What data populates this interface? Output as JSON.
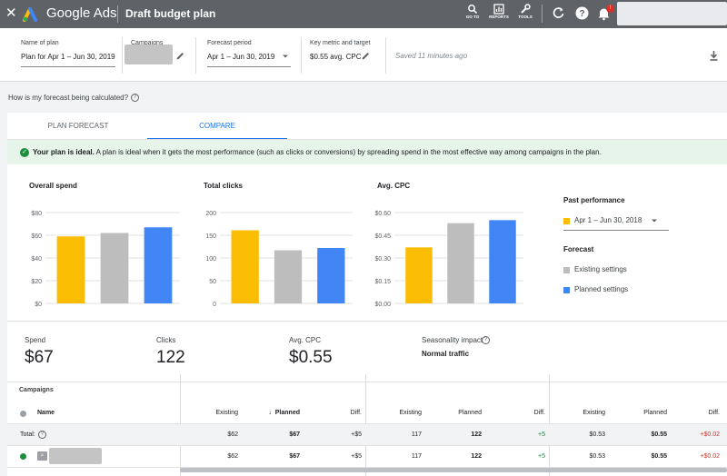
{
  "app": {
    "brand": "Google Ads",
    "page_title": "Draft budget plan",
    "tools": [
      {
        "label": "GO TO",
        "icon": "search-icon"
      },
      {
        "label": "REPORTS",
        "icon": "reports-icon"
      },
      {
        "label": "TOOLS",
        "icon": "wrench-icon"
      }
    ],
    "notification_count": "!"
  },
  "header": {
    "plan_name_label": "Name of plan",
    "plan_name_value": "Plan for Apr 1 – Jun 30, 2019",
    "campaigns_label": "Campaigns",
    "forecast_period_label": "Forecast period",
    "forecast_period_value": "Apr 1 – Jun 30, 2019",
    "metric_label": "Key metric and target",
    "metric_value": "$0.55 avg. CPC",
    "saved_text": "Saved 11 minutes ago"
  },
  "how_text": "How is my forecast being calculated?",
  "tabs": [
    {
      "label": "PLAN FORECAST",
      "active": false
    },
    {
      "label": "COMPARE",
      "active": true
    }
  ],
  "ideal_banner": {
    "bold": "Your plan is ideal.",
    "text": " A plan is ideal when it gets the most performance (such as clicks or conversions) by spreading spend in the most effective way among campaigns in the plan."
  },
  "legend": {
    "past_title": "Past performance",
    "past_period": "Apr 1 – Jun 30, 2018",
    "forecast_title": "Forecast",
    "existing": "Existing settings",
    "planned": "Planned settings",
    "colors": {
      "past": "#fbbc04",
      "existing": "#bdbdbd",
      "planned": "#4285f4"
    }
  },
  "chart_data": [
    {
      "type": "bar",
      "title": "Overall spend",
      "categories": [
        "Past performance",
        "Existing settings",
        "Planned settings"
      ],
      "values": [
        59,
        62,
        67
      ],
      "ylim": [
        0,
        80
      ],
      "yticks": [
        "$0",
        "$20",
        "$40",
        "$60",
        "$80"
      ],
      "ytick_values": [
        0,
        20,
        40,
        60,
        80
      ],
      "grid": true
    },
    {
      "type": "bar",
      "title": "Total clicks",
      "categories": [
        "Past performance",
        "Existing settings",
        "Planned settings"
      ],
      "values": [
        161,
        117,
        122
      ],
      "ylim": [
        0,
        200
      ],
      "yticks": [
        "0",
        "50",
        "100",
        "150",
        "200"
      ],
      "ytick_values": [
        0,
        50,
        100,
        150,
        200
      ],
      "grid": true
    },
    {
      "type": "bar",
      "title": "Avg. CPC",
      "categories": [
        "Past performance",
        "Existing settings",
        "Planned settings"
      ],
      "values": [
        0.37,
        0.53,
        0.55
      ],
      "ylim": [
        0,
        0.6
      ],
      "yticks": [
        "$0.00",
        "$0.15",
        "$0.30",
        "$0.45",
        "$0.60"
      ],
      "ytick_values": [
        0,
        0.15,
        0.3,
        0.45,
        0.6
      ],
      "grid": true
    }
  ],
  "stats": [
    {
      "label": "Spend",
      "value": "$67"
    },
    {
      "label": "Clicks",
      "value": "122"
    },
    {
      "label": "Avg. CPC",
      "value": "$0.55"
    }
  ],
  "seasonality": {
    "label": "Seasonality impact",
    "value": "Normal traffic"
  },
  "table": {
    "title": "Campaigns",
    "name_header": "Name",
    "group_headers": [
      "Existing",
      "Planned",
      "Diff."
    ],
    "rows": [
      {
        "name": "Total:",
        "cells": [
          "$62",
          "$67",
          "+$5",
          "117",
          "122",
          "+5",
          "$0.53",
          "$0.55",
          "+$0.02"
        ]
      },
      {
        "name": "",
        "cells": [
          "$62",
          "$67",
          "+$5",
          "117",
          "122",
          "+5",
          "$0.53",
          "$0.55",
          "+$0.02"
        ]
      }
    ]
  }
}
